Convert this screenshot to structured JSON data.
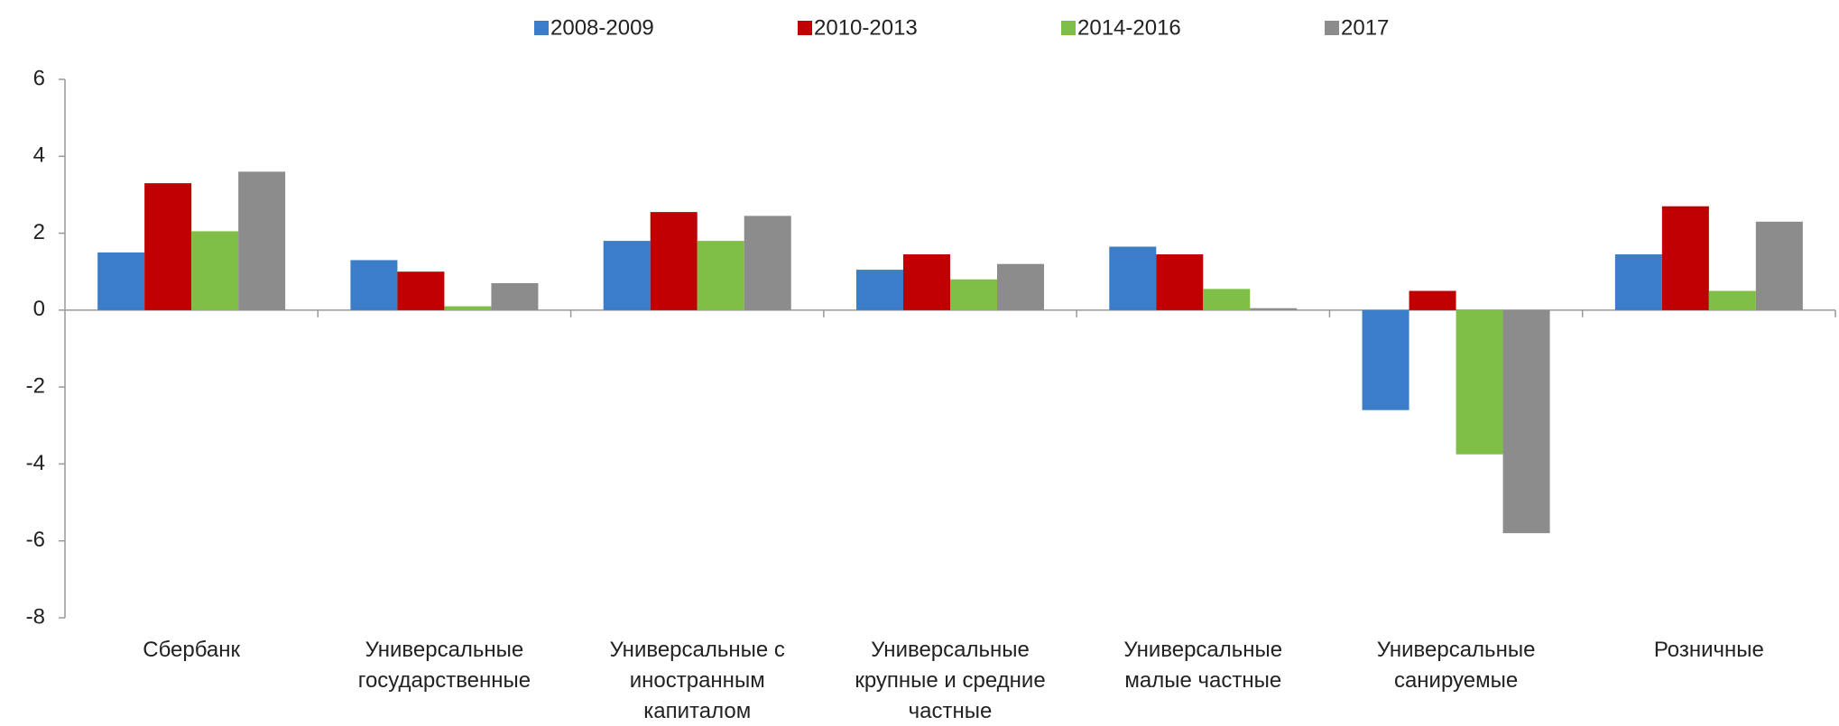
{
  "chart_data": {
    "type": "bar",
    "categories": [
      "Сбербанк",
      "Универсальные\nгосударственные",
      "Универсальные с\nиностранным\nкапиталом",
      "Универсальные\nкрупные и средние\nчастные",
      "Универсальные\nмалые частные",
      "Универсальные\nсанируемые",
      "Розничные"
    ],
    "series": [
      {
        "name": "2008-2009",
        "color": "#3b7dc8",
        "values": [
          1.5,
          1.3,
          1.8,
          1.05,
          1.65,
          -2.6,
          1.45
        ]
      },
      {
        "name": "2010-2013",
        "color": "#c00000",
        "values": [
          3.3,
          1.0,
          2.55,
          1.45,
          1.45,
          0.5,
          2.7
        ]
      },
      {
        "name": "2014-2016",
        "color": "#7fbf45",
        "values": [
          2.05,
          0.1,
          1.8,
          0.8,
          0.55,
          -3.75,
          0.5
        ]
      },
      {
        "name": "2017",
        "color": "#8c8c8c",
        "values": [
          3.6,
          0.7,
          2.45,
          1.2,
          0.05,
          -5.8,
          2.3
        ]
      }
    ],
    "ylim": [
      -8,
      6
    ],
    "yticks": [
      -8,
      -6,
      -4,
      -2,
      0,
      2,
      4,
      6
    ],
    "legend": "top"
  }
}
